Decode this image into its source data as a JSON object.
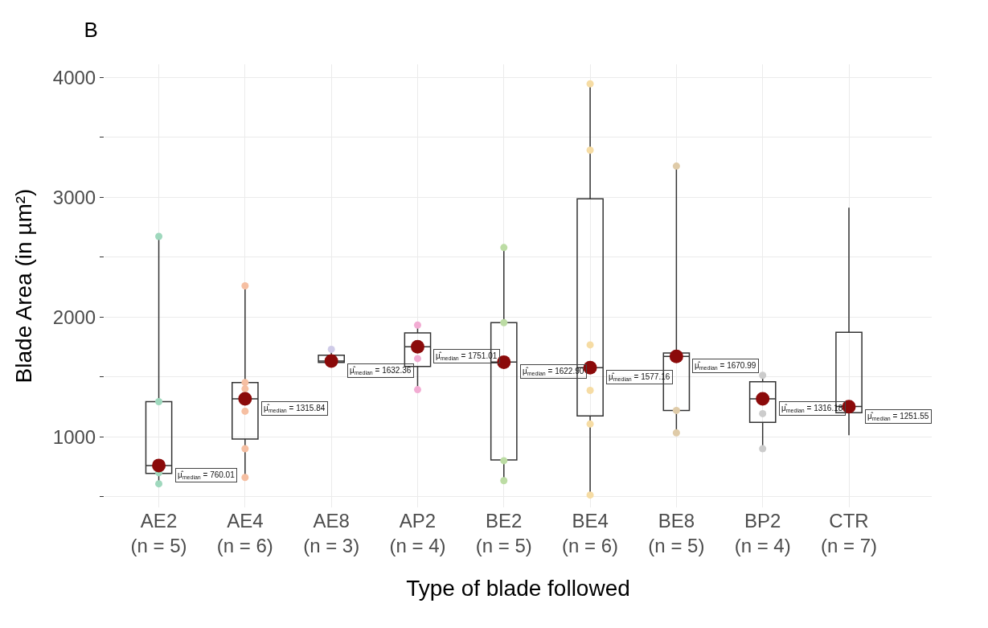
{
  "chart_data": {
    "type": "box",
    "title": "B",
    "xlabel": "Type of blade followed",
    "ylabel": "Blade Area (in µm²)",
    "categories": [
      "AE2\n(n = 5)",
      "AE4\n(n = 6)",
      "AE8\n(n = 3)",
      "AP2\n(n = 4)",
      "BE2\n(n = 5)",
      "BE4\n(n = 6)",
      "BE8\n(n = 5)",
      "BP2\n(n = 4)",
      "CTR\n(n = 7)"
    ],
    "series": [
      {
        "color": "#333333",
        "boxes": [
          {
            "low": 607,
            "q1": 693,
            "median": 760,
            "q3": 1293,
            "high": 2673
          },
          {
            "low": 660,
            "q1": 980,
            "median": 1316,
            "q3": 1453,
            "high": 2260
          },
          {
            "low": 1620,
            "q1": 1620,
            "median": 1632,
            "q3": 1680,
            "high": 1730
          },
          {
            "low": 1393,
            "q1": 1587,
            "median": 1751,
            "q3": 1867,
            "high": 1933
          },
          {
            "low": 633,
            "q1": 807,
            "median": 1623,
            "q3": 1953,
            "high": 2580
          },
          {
            "low": 513,
            "q1": 1173,
            "median": 1577,
            "q3": 2987,
            "high": 3947
          },
          {
            "low": 1033,
            "q1": 1220,
            "median": 1671,
            "q3": 1700,
            "high": 3260
          },
          {
            "low": 900,
            "q1": 1120,
            "median": 1316,
            "q3": 1460,
            "high": 1513
          },
          {
            "low": 1013,
            "q1": 1200,
            "median": 1252,
            "q3": 1873,
            "high": 2913
          }
        ]
      },
      {
        "type": "scatter",
        "x": [
          "AE2\n(n = 5)",
          "AE2\n(n = 5)",
          "AE2\n(n = 5)",
          "AE2\n(n = 5)",
          "AE4\n(n = 6)",
          "AE4\n(n = 6)",
          "AE4\n(n = 6)",
          "AE4\n(n = 6)",
          "AE4\n(n = 6)",
          "AE4\n(n = 6)",
          "AE8\n(n = 3)",
          "AP2\n(n = 4)",
          "AP2\n(n = 4)",
          "AP2\n(n = 4)",
          "BE2\n(n = 5)",
          "BE2\n(n = 5)",
          "BE2\n(n = 5)",
          "BE2\n(n = 5)",
          "BE4\n(n = 6)",
          "BE4\n(n = 6)",
          "BE4\n(n = 6)",
          "BE4\n(n = 6)",
          "BE4\n(n = 6)",
          "BE4\n(n = 6)",
          "BE8\n(n = 5)",
          "BE8\n(n = 5)",
          "BE8\n(n = 5)",
          "BP2\n(n = 4)",
          "BP2\n(n = 4)",
          "BP2\n(n = 4)"
        ],
        "values": [
          2673,
          1293,
          700,
          607,
          2260,
          1453,
          1400,
          1213,
          900,
          660,
          1730,
          1933,
          1653,
          1393,
          2580,
          1953,
          800,
          633,
          3947,
          3393,
          1767,
          1387,
          1107,
          513,
          3260,
          1220,
          1033,
          1513,
          1193,
          900
        ],
        "colors": [
          "#9fd8bd",
          "#9fd8bd",
          "#9fd8bd",
          "#9fd8bd",
          "#f6bfa2",
          "#f6bfa2",
          "#f6bfa2",
          "#f6bfa2",
          "#f6bfa2",
          "#f6bfa2",
          "#cfcbe8",
          "#f2acd3",
          "#f2acd3",
          "#f2acd3",
          "#bcdca4",
          "#bcdca4",
          "#bcdca4",
          "#bcdca4",
          "#f6dca4",
          "#f6dca4",
          "#f6dca4",
          "#f6dca4",
          "#f6dca4",
          "#f6dca4",
          "#dfcba8",
          "#dfcba8",
          "#dfcba8",
          "#cccccc",
          "#cccccc",
          "#cccccc"
        ]
      },
      {
        "type": "scatter",
        "color": "#8b0a0a",
        "values": [
          760.01,
          1315.84,
          1632.36,
          1751.01,
          1622.9,
          1577.16,
          1670.99,
          1316.18,
          1251.55
        ],
        "value_labels": [
          "μ̂$_{median}$ = 760.01",
          "μ̂$_{median}$ = 1315.84",
          "μ̂$_{median}$ = 1632.36",
          "μ̂$_{median}$ = 1751.01",
          "μ̂$_{median}$ = 1622.90",
          "μ̂$_{median}$ = 1577.16",
          "μ̂$_{median}$ = 1670.99",
          "μ̂$_{median}$ = 1316.18",
          "μ̂$_{median}$ = 1251.55"
        ]
      }
    ],
    "ylim": [
      410,
      4110
    ],
    "yticks": [
      {
        "value": 500,
        "label": null
      },
      1000,
      {
        "value": 1500,
        "label": null
      },
      2000,
      {
        "value": 2500,
        "label": null
      },
      3000,
      {
        "value": 3500,
        "label": null
      },
      4000
    ],
    "grid": true
  }
}
